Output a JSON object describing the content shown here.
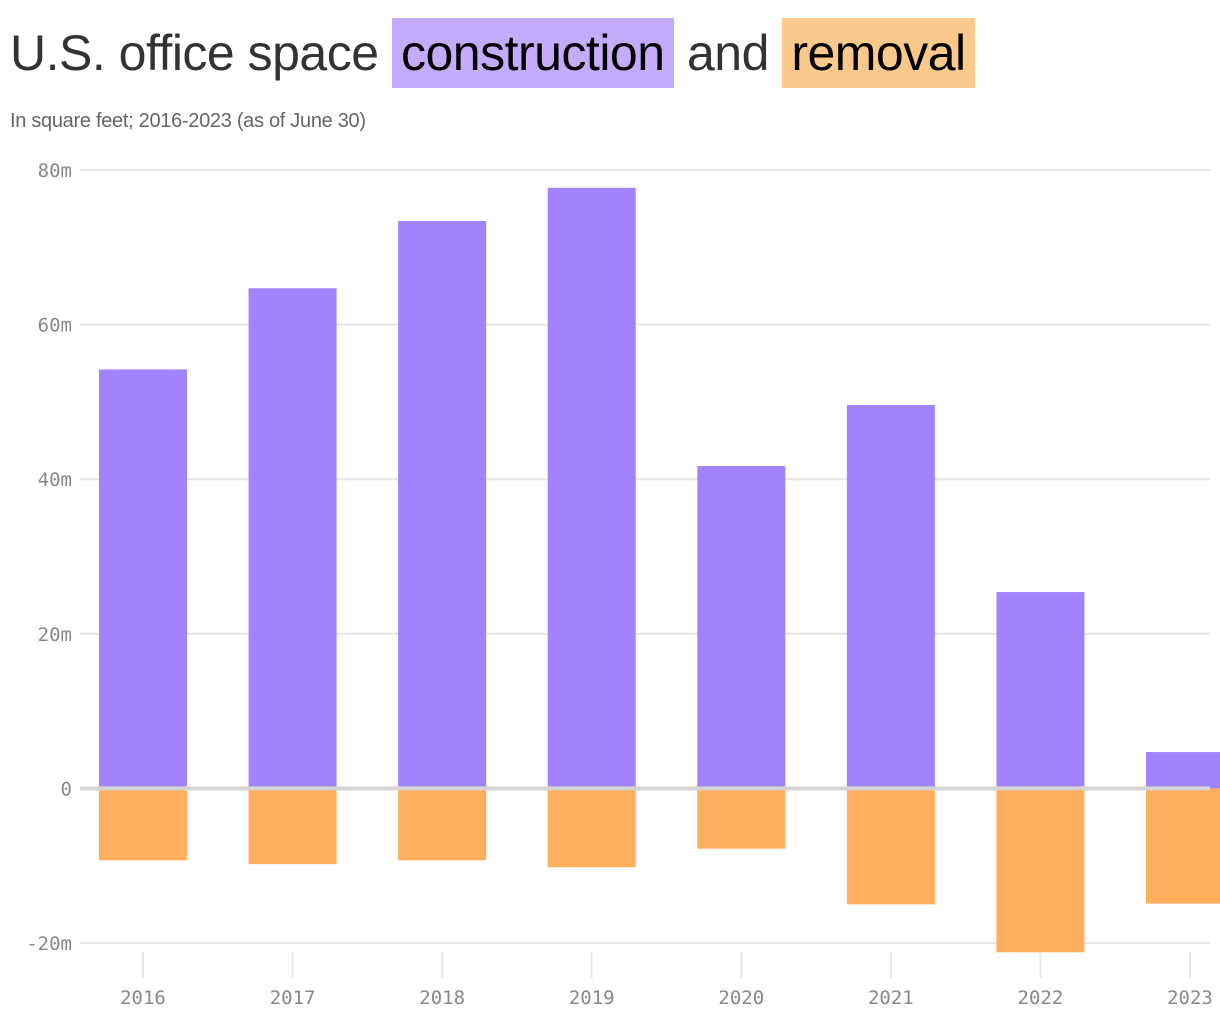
{
  "header": {
    "title_prefix": "U.S. office space",
    "title_construction": "construction",
    "title_and": "and",
    "title_removal": "removal",
    "subtitle": "In square feet; 2016-2023 (as of June 30)"
  },
  "colors": {
    "construction": "#a183fd",
    "removal": "#feae5d",
    "construction_highlight": "#c3abfd",
    "removal_highlight": "#fbc98c",
    "gridline": "#e6e6e6",
    "zero_line": "#d4d4d4",
    "tick_text": "#888888"
  },
  "chart_data": {
    "type": "bar",
    "title": "U.S. office space construction and removal",
    "subtitle": "In square feet; 2016-2023 (as of June 30)",
    "xlabel": "",
    "ylabel": "",
    "categories": [
      "2016",
      "2017",
      "2018",
      "2019",
      "2020",
      "2021",
      "2022",
      "2023"
    ],
    "series": [
      {
        "name": "construction",
        "values": [
          54.2,
          64.7,
          73.4,
          77.7,
          41.7,
          49.6,
          25.4,
          4.7
        ]
      },
      {
        "name": "removal",
        "values": [
          -9.3,
          -9.8,
          -9.3,
          -10.2,
          -7.8,
          -15.0,
          -21.2,
          -14.9
        ]
      }
    ],
    "units": "million square feet",
    "ylim": [
      -20,
      80
    ],
    "yticks": [
      80,
      60,
      40,
      20,
      0,
      -20
    ],
    "ytick_labels": [
      "80m",
      "60m",
      "40m",
      "20m",
      "0",
      "-20m"
    ],
    "grid": true,
    "legend": "inline in title (highlighted words)",
    "stacked": "diverging around zero"
  }
}
